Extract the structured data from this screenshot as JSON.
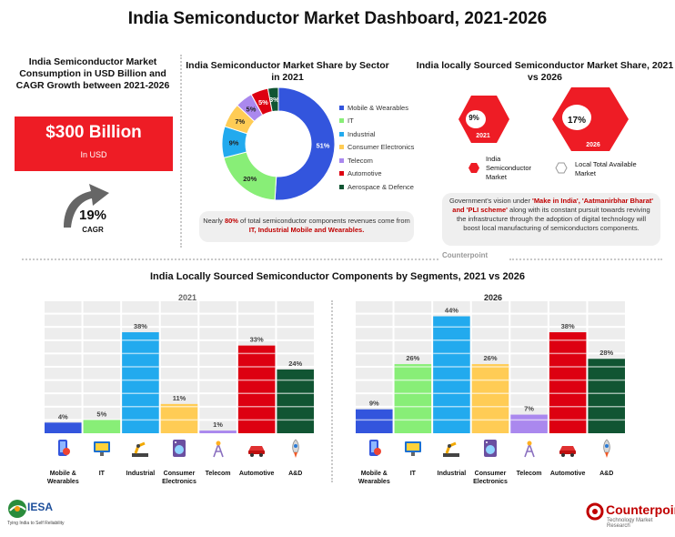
{
  "title": "India Semiconductor Market Dashboard, 2021-2026",
  "consumption": {
    "title": "India Semiconductor Market Consumption in USD Billion and CAGR Growth between 2021-2026",
    "value": "$300 Billion",
    "unit": "In USD",
    "cagr_value": "19%",
    "cagr_label": "CAGR",
    "icon": "up-arrow-icon"
  },
  "sector_share": {
    "title": "India Semiconductor Market Share by Sector in 2021",
    "note_parts": [
      "Nearly ",
      "80%",
      " of total semiconductor components revenues come from ",
      "IT, Industrial Mobile and Wearables."
    ]
  },
  "local_share": {
    "title": "India locally Sourced Semiconductor Market Share, 2021 vs 2026",
    "hex_2021_value": "9%",
    "hex_2021_year": "2021",
    "hex_2026_value": "17%",
    "hex_2026_year": "2026",
    "legend_india": "India Semiconductor Market",
    "legend_local": "Local Total Available Market",
    "note_parts": [
      "Government's vision under ",
      "'Make in India', 'Aatmanirbhar Bharat' and 'PLI scheme'",
      " along with its constant pursuit towards reviving the infrastructure through the adoption of digital technology will boost local manufacturing of semiconductors components."
    ]
  },
  "segments": {
    "title": "India Locally Sourced Semiconductor Components by Segments, 2021 vs 2026",
    "categories": [
      "Mobile & Wearables",
      "IT",
      "Industrial",
      "Consumer Electronics",
      "Telecom",
      "Automotive",
      "A&D"
    ],
    "icons": [
      "smartphone-icon",
      "monitor-icon",
      "robot-arm-icon",
      "washing-machine-icon",
      "antenna-tower-icon",
      "car-icon",
      "rocket-icon"
    ]
  },
  "colors": {
    "mobile": "#3355dd",
    "it": "#88ee77",
    "industrial": "#22aaee",
    "consumer": "#ffcc55",
    "telecom": "#aa88ee",
    "automotive": "#dd0011",
    "aerospace": "#115533",
    "accent_red": "#ee1c25",
    "note_bg": "#efefef"
  },
  "branding": {
    "counterpoint": "Counterpoint",
    "counterpoint_sub": "Technology Market Research",
    "iesa": "IESA",
    "iesa_sub": "Tying India to Self Reliability"
  },
  "chart_data": [
    {
      "type": "pie",
      "title": "India Semiconductor Market Share by Sector in 2021",
      "categories": [
        "Mobile & Wearables",
        "IT",
        "Industrial",
        "Consumer Electronics",
        "Telecom",
        "Automotive",
        "Aerospace & Defence"
      ],
      "values": [
        51,
        20,
        9,
        7,
        5,
        5,
        3
      ],
      "labels": [
        "51%",
        "20%",
        "9%",
        "7%",
        "5%",
        "5%",
        "3%"
      ],
      "colors": [
        "#3355dd",
        "#88ee77",
        "#22aaee",
        "#ffcc55",
        "#aa88ee",
        "#dd0011",
        "#115533"
      ],
      "legend": "right"
    },
    {
      "type": "bar",
      "title": "2021",
      "categories": [
        "Mobile & Wearables",
        "IT",
        "Industrial",
        "Consumer Electronics",
        "Telecom",
        "Automotive",
        "A&D"
      ],
      "values": [
        4,
        5,
        38,
        11,
        1,
        33,
        24
      ],
      "labels": [
        "4%",
        "5%",
        "38%",
        "11%",
        "1%",
        "33%",
        "24%"
      ],
      "colors": [
        "#3355dd",
        "#88ee77",
        "#22aaee",
        "#ffcc55",
        "#aa88ee",
        "#dd0011",
        "#115533"
      ],
      "ylim": [
        0,
        50
      ],
      "grid": true
    },
    {
      "type": "bar",
      "title": "2026",
      "categories": [
        "Mobile & Wearables",
        "IT",
        "Industrial",
        "Consumer Electronics",
        "Telecom",
        "Automotive",
        "A&D"
      ],
      "values": [
        9,
        26,
        44,
        26,
        7,
        38,
        28
      ],
      "labels": [
        "9%",
        "26%",
        "44%",
        "26%",
        "7%",
        "38%",
        "28%"
      ],
      "colors": [
        "#3355dd",
        "#88ee77",
        "#22aaee",
        "#ffcc55",
        "#aa88ee",
        "#dd0011",
        "#115533"
      ],
      "ylim": [
        0,
        50
      ],
      "grid": true
    }
  ]
}
